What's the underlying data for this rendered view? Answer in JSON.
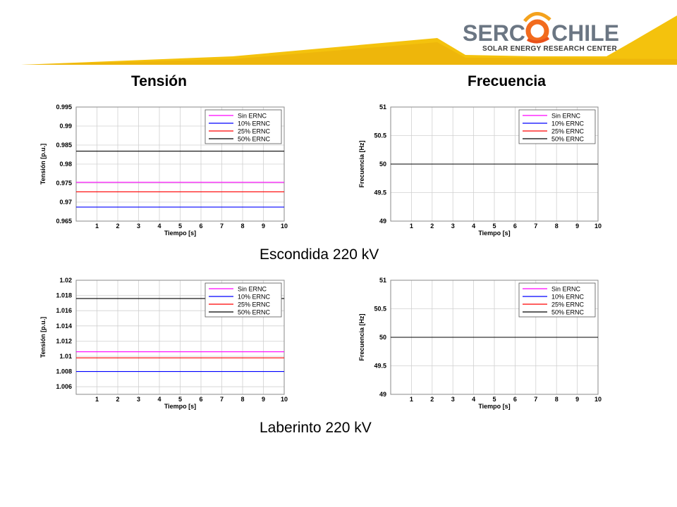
{
  "logo": {
    "brand_left": "SERC",
    "brand_right": "CHILE",
    "subtitle": "SOLAR ENERGY RESEARCH CENTER"
  },
  "headings": {
    "left": "Tensión",
    "right": "Frecuencia"
  },
  "locations": {
    "top": "Escondida 220 kV",
    "bottom": "Laberinto 220 kV"
  },
  "colors": {
    "banner_yellow": "#f4c20d",
    "sin_ernc": "#ff00ff",
    "ernc_10": "#0000ff",
    "ernc_25": "#ff0000",
    "ernc_50": "#000000"
  },
  "chart_data": [
    {
      "id": "escondida-tension",
      "type": "line",
      "xlabel": "Tiempo [s]",
      "ylabel": "Tensión [p.u.]",
      "xlim": [
        0,
        10
      ],
      "ylim": [
        0.965,
        0.995
      ],
      "xticks": [
        1,
        2,
        3,
        4,
        5,
        6,
        7,
        8,
        9,
        10
      ],
      "yticks": [
        0.965,
        0.97,
        0.975,
        0.98,
        0.985,
        0.99,
        0.995
      ],
      "ytick_labels": [
        "0.965",
        "0.97",
        "0.975",
        "0.98",
        "0.985",
        "0.99",
        "0.995"
      ],
      "legend_position": "top-right",
      "series": [
        {
          "name": "Sin ERNC",
          "color": "#ff00ff",
          "x": [
            0,
            10
          ],
          "y": [
            0.9752,
            0.9752
          ]
        },
        {
          "name": "10% ERNC",
          "color": "#0000ff",
          "x": [
            0,
            10
          ],
          "y": [
            0.9687,
            0.9687
          ]
        },
        {
          "name": "25% ERNC",
          "color": "#ff0000",
          "x": [
            0,
            10
          ],
          "y": [
            0.9727,
            0.9727
          ]
        },
        {
          "name": "50% ERNC",
          "color": "#000000",
          "x": [
            0,
            10
          ],
          "y": [
            0.9834,
            0.9834
          ]
        }
      ]
    },
    {
      "id": "escondida-frecuencia",
      "type": "line",
      "xlabel": "Tiempo [s]",
      "ylabel": "Frecuencia [Hz]",
      "xlim": [
        0,
        10
      ],
      "ylim": [
        49,
        51
      ],
      "xticks": [
        1,
        2,
        3,
        4,
        5,
        6,
        7,
        8,
        9,
        10
      ],
      "yticks": [
        49,
        49.5,
        50,
        50.5,
        51
      ],
      "ytick_labels": [
        "49",
        "49.5",
        "50",
        "50.5",
        "51"
      ],
      "legend_position": "top-right",
      "series": [
        {
          "name": "Sin ERNC",
          "color": "#ff00ff",
          "x": [
            0,
            10
          ],
          "y": [
            50,
            50
          ]
        },
        {
          "name": "10% ERNC",
          "color": "#0000ff",
          "x": [
            0,
            10
          ],
          "y": [
            50,
            50
          ]
        },
        {
          "name": "25% ERNC",
          "color": "#ff0000",
          "x": [
            0,
            10
          ],
          "y": [
            50,
            50
          ]
        },
        {
          "name": "50% ERNC",
          "color": "#000000",
          "x": [
            0,
            10
          ],
          "y": [
            50,
            50
          ]
        }
      ]
    },
    {
      "id": "laberinto-tension",
      "type": "line",
      "xlabel": "Tiempo [s]",
      "ylabel": "Tensión [p.u.]",
      "xlim": [
        0,
        10
      ],
      "ylim": [
        1.005,
        1.02
      ],
      "xticks": [
        1,
        2,
        3,
        4,
        5,
        6,
        7,
        8,
        9,
        10
      ],
      "yticks": [
        1.006,
        1.008,
        1.01,
        1.012,
        1.014,
        1.016,
        1.018,
        1.02
      ],
      "ytick_labels": [
        "1.006",
        "1.008",
        "1.01",
        "1.012",
        "1.014",
        "1.016",
        "1.018",
        "1.02"
      ],
      "legend_position": "top-right",
      "series": [
        {
          "name": "Sin ERNC",
          "color": "#ff00ff",
          "x": [
            0,
            10
          ],
          "y": [
            1.0106,
            1.0106
          ]
        },
        {
          "name": "10% ERNC",
          "color": "#0000ff",
          "x": [
            0,
            10
          ],
          "y": [
            1.008,
            1.008
          ]
        },
        {
          "name": "25% ERNC",
          "color": "#ff0000",
          "x": [
            0,
            10
          ],
          "y": [
            1.0098,
            1.0098
          ]
        },
        {
          "name": "50% ERNC",
          "color": "#000000",
          "x": [
            0,
            10
          ],
          "y": [
            1.0176,
            1.0176
          ]
        }
      ]
    },
    {
      "id": "laberinto-frecuencia",
      "type": "line",
      "xlabel": "Tiempo [s]",
      "ylabel": "Frecuencia [Hz]",
      "xlim": [
        0,
        10
      ],
      "ylim": [
        49,
        51
      ],
      "xticks": [
        1,
        2,
        3,
        4,
        5,
        6,
        7,
        8,
        9,
        10
      ],
      "yticks": [
        49,
        49.5,
        50,
        50.5,
        51
      ],
      "ytick_labels": [
        "49",
        "49.5",
        "50",
        "50.5",
        "51"
      ],
      "legend_position": "top-right",
      "series": [
        {
          "name": "Sin ERNC",
          "color": "#ff00ff",
          "x": [
            0,
            10
          ],
          "y": [
            50,
            50
          ]
        },
        {
          "name": "10% ERNC",
          "color": "#0000ff",
          "x": [
            0,
            10
          ],
          "y": [
            50,
            50
          ]
        },
        {
          "name": "25% ERNC",
          "color": "#ff0000",
          "x": [
            0,
            10
          ],
          "y": [
            50,
            50
          ]
        },
        {
          "name": "50% ERNC",
          "color": "#000000",
          "x": [
            0,
            10
          ],
          "y": [
            50,
            50
          ]
        }
      ]
    }
  ]
}
